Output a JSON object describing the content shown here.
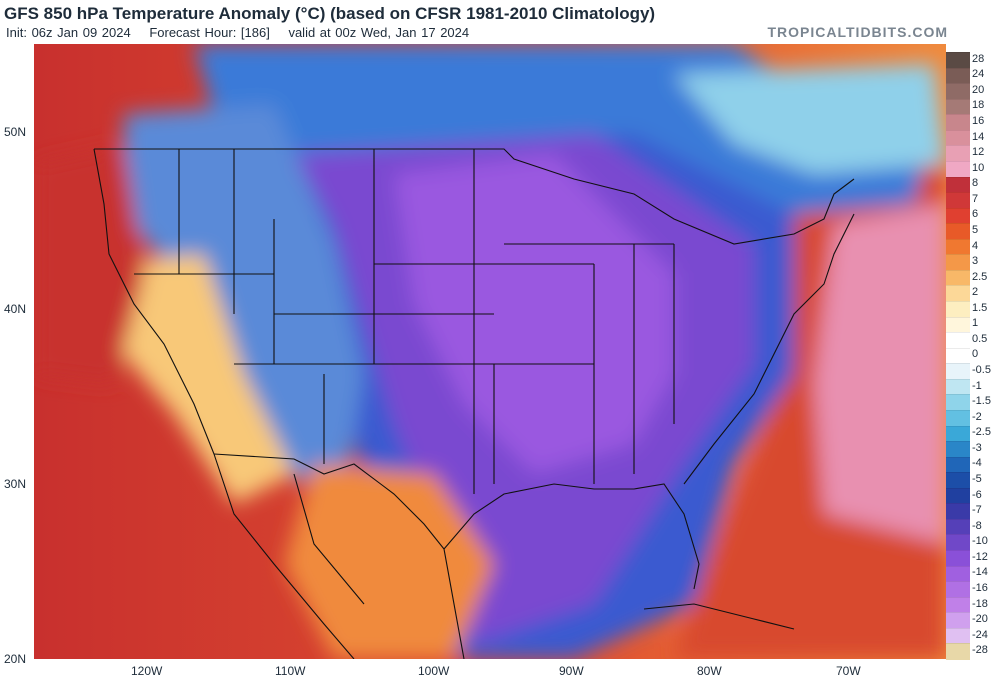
{
  "header": {
    "title": "GFS 850 hPa Temperature Anomaly (°C) (based on CFSR 1981-2010 Climatology)",
    "init": "Init: 06z Jan 09 2024",
    "forecast_hour": "Forecast Hour: [186]",
    "valid": "valid at 00z Wed, Jan 17 2024",
    "brand": "TROPICALTIDBITS.COM"
  },
  "axes": {
    "lat_labels": [
      "50N",
      "40N",
      "30N",
      "20N"
    ],
    "lon_labels": [
      "120W",
      "110W",
      "100W",
      "90W",
      "80W",
      "70W"
    ]
  },
  "colorbar": {
    "labels": [
      "28",
      "24",
      "20",
      "18",
      "16",
      "14",
      "12",
      "10",
      "8",
      "7",
      "6",
      "5",
      "4",
      "3",
      "2.5",
      "2",
      "1.5",
      "1",
      "0.5",
      "0",
      "-0.5",
      "-1",
      "-1.5",
      "-2",
      "-2.5",
      "-3",
      "-4",
      "-5",
      "-6",
      "-7",
      "-8",
      "-10",
      "-12",
      "-14",
      "-16",
      "-18",
      "-20",
      "-24",
      "-28"
    ],
    "colors": [
      "#5a4a44",
      "#7a5c56",
      "#8f6b66",
      "#a57a76",
      "#c8868c",
      "#d9909c",
      "#e8a0b4",
      "#f0a8c4",
      "#c0303a",
      "#d03838",
      "#e04030",
      "#e85a28",
      "#f07830",
      "#f49848",
      "#f8b868",
      "#fcd898",
      "#fdeec0",
      "#fff6dc",
      "#ffffff",
      "#ffffff",
      "#e8f4fa",
      "#bfe6f2",
      "#8fd4ea",
      "#62c0e2",
      "#3aa8d8",
      "#2a86c8",
      "#2066b8",
      "#1c4ea8",
      "#2040a0",
      "#3a3aa8",
      "#5540b8",
      "#7048c8",
      "#8a50d8",
      "#a060e0",
      "#b070e4",
      "#c080e8",
      "#d0a0ee",
      "#e0c0f2",
      "#e8d8a8"
    ]
  },
  "map": {
    "colors": {
      "ocean_warm": "#d8482e",
      "very_warm": "#c8302e",
      "pink": "#e890b0",
      "cold_purple": "#7a4ad0",
      "deep_purple": "#9a58e0",
      "blue": "#3a6ad0",
      "light_blue": "#8fd0ea",
      "orange": "#f08a3c",
      "yellow": "#f8c878"
    }
  }
}
